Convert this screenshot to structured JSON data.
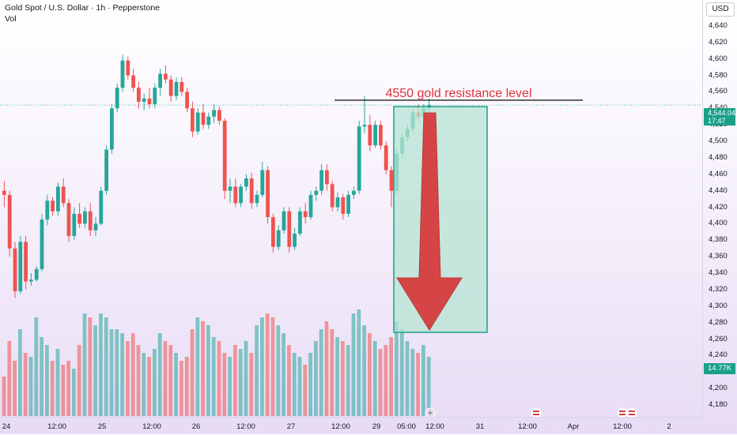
{
  "header": {
    "title": "Gold Spot / U.S. Dollar · 1h · Pepperstone",
    "volume_label": "Vol"
  },
  "price_scale": {
    "currency": "USD"
  },
  "price_badge": {
    "price": "4,544.04",
    "countdown": "17:47"
  },
  "volume_badge": "14.77K",
  "annotation": {
    "text": "4550 gold resistance level",
    "level": 4550,
    "color": "#e0323c"
  },
  "colors": {
    "up": "#26a69a",
    "down": "#ef5350",
    "box_fill": "#b5e3d3",
    "box_border": "#1aa089",
    "arrow": "#d64545",
    "resistance_line": "#333333"
  },
  "chart_data": {
    "type": "candlestick",
    "ylim": [
      4180,
      4660
    ],
    "y_ticks": [
      4180,
      4200,
      4220,
      4240,
      4260,
      4280,
      4300,
      4320,
      4340,
      4360,
      4380,
      4400,
      4420,
      4440,
      4460,
      4480,
      4500,
      4520,
      4540,
      4560,
      4580,
      4600,
      4620,
      4640,
      4660
    ],
    "x_labels": [
      "24",
      "12:00",
      "25",
      "12:00",
      "26",
      "12:00",
      "27",
      "12:00",
      "29",
      "05:00",
      "12:00",
      "31",
      "12:00",
      "Apr",
      "12:00",
      "2"
    ],
    "ohlc": [
      [
        4440,
        4452,
        4420,
        4435
      ],
      [
        4435,
        4440,
        4360,
        4370
      ],
      [
        4370,
        4378,
        4310,
        4318
      ],
      [
        4318,
        4385,
        4315,
        4378
      ],
      [
        4378,
        4385,
        4320,
        4330
      ],
      [
        4330,
        4340,
        4325,
        4332
      ],
      [
        4332,
        4348,
        4330,
        4345
      ],
      [
        4345,
        4412,
        4342,
        4405
      ],
      [
        4405,
        4435,
        4398,
        4428
      ],
      [
        4428,
        4432,
        4410,
        4415
      ],
      [
        4415,
        4450,
        4410,
        4445
      ],
      [
        4445,
        4455,
        4420,
        4425
      ],
      [
        4425,
        4430,
        4378,
        4385
      ],
      [
        4385,
        4420,
        4380,
        4412
      ],
      [
        4412,
        4425,
        4395,
        4400
      ],
      [
        4400,
        4420,
        4395,
        4415
      ],
      [
        4415,
        4425,
        4385,
        4392
      ],
      [
        4392,
        4408,
        4385,
        4400
      ],
      [
        4400,
        4445,
        4398,
        4440
      ],
      [
        4440,
        4495,
        4435,
        4490
      ],
      [
        4490,
        4545,
        4485,
        4540
      ],
      [
        4540,
        4570,
        4535,
        4565
      ],
      [
        4565,
        4605,
        4560,
        4598
      ],
      [
        4598,
        4603,
        4575,
        4580
      ],
      [
        4580,
        4588,
        4560,
        4565
      ],
      [
        4565,
        4572,
        4540,
        4548
      ],
      [
        4548,
        4558,
        4538,
        4552
      ],
      [
        4552,
        4565,
        4540,
        4545
      ],
      [
        4545,
        4570,
        4540,
        4565
      ],
      [
        4565,
        4588,
        4555,
        4582
      ],
      [
        4582,
        4592,
        4570,
        4575
      ],
      [
        4575,
        4580,
        4548,
        4555
      ],
      [
        4555,
        4578,
        4550,
        4572
      ],
      [
        4572,
        4578,
        4555,
        4560
      ],
      [
        4560,
        4565,
        4535,
        4540
      ],
      [
        4540,
        4548,
        4505,
        4512
      ],
      [
        4512,
        4540,
        4508,
        4535
      ],
      [
        4535,
        4545,
        4515,
        4520
      ],
      [
        4520,
        4535,
        4515,
        4530
      ],
      [
        4530,
        4545,
        4522,
        4538
      ],
      [
        4538,
        4542,
        4520,
        4525
      ],
      [
        4525,
        4528,
        4430,
        4440
      ],
      [
        4440,
        4455,
        4425,
        4445
      ],
      [
        4445,
        4455,
        4420,
        4425
      ],
      [
        4425,
        4448,
        4420,
        4445
      ],
      [
        4445,
        4460,
        4440,
        4455
      ],
      [
        4455,
        4462,
        4418,
        4425
      ],
      [
        4425,
        4440,
        4420,
        4435
      ],
      [
        4435,
        4475,
        4432,
        4465
      ],
      [
        4465,
        4470,
        4400,
        4408
      ],
      [
        4408,
        4412,
        4365,
        4372
      ],
      [
        4372,
        4398,
        4368,
        4392
      ],
      [
        4392,
        4420,
        4388,
        4415
      ],
      [
        4415,
        4420,
        4365,
        4372
      ],
      [
        4372,
        4395,
        4368,
        4388
      ],
      [
        4388,
        4420,
        4385,
        4415
      ],
      [
        4415,
        4425,
        4400,
        4408
      ],
      [
        4408,
        4440,
        4405,
        4435
      ],
      [
        4435,
        4445,
        4428,
        4440
      ],
      [
        4440,
        4472,
        4435,
        4465
      ],
      [
        4465,
        4472,
        4440,
        4448
      ],
      [
        4448,
        4452,
        4415,
        4420
      ],
      [
        4420,
        4438,
        4415,
        4432
      ],
      [
        4432,
        4436,
        4405,
        4412
      ],
      [
        4412,
        4440,
        4408,
        4435
      ],
      [
        4435,
        4445,
        4430,
        4440
      ],
      [
        4440,
        4525,
        4436,
        4518
      ],
      [
        4518,
        4555,
        4510,
        4520
      ],
      [
        4520,
        4532,
        4488,
        4495
      ],
      [
        4495,
        4525,
        4492,
        4520
      ],
      [
        4520,
        4525,
        4490,
        4495
      ],
      [
        4495,
        4500,
        4460,
        4465
      ],
      [
        4465,
        4470,
        4420,
        4440
      ],
      [
        4440,
        4490,
        4436,
        4485
      ],
      [
        4485,
        4510,
        4480,
        4505
      ],
      [
        4505,
        4520,
        4500,
        4515
      ],
      [
        4515,
        4540,
        4510,
        4535
      ],
      [
        4535,
        4545,
        4525,
        4530
      ],
      [
        4530,
        4545,
        4525,
        4540
      ],
      [
        4540,
        4552,
        4530,
        4544
      ]
    ],
    "volume": [
      5.0,
      9.5,
      7.0,
      11.0,
      8.0,
      7.5,
      12.5,
      10.0,
      9.0,
      7.0,
      8.5,
      6.5,
      7.0,
      6.0,
      9.0,
      13.0,
      12.5,
      11.5,
      13.0,
      12.5,
      11.0,
      11.0,
      10.5,
      9.5,
      10.5,
      9.0,
      8.0,
      7.5,
      8.5,
      10.5,
      9.5,
      9.0,
      8.0,
      7.0,
      7.5,
      11.0,
      12.5,
      12.0,
      11.5,
      10.0,
      9.5,
      8.0,
      7.5,
      9.0,
      8.5,
      9.5,
      8.0,
      11.5,
      12.5,
      13.0,
      12.5,
      11.5,
      10.5,
      9.0,
      8.0,
      7.5,
      6.5,
      8.0,
      9.5,
      11.0,
      12.0,
      11.0,
      10.0,
      9.5,
      9.0,
      13.0,
      13.5,
      11.5,
      10.5,
      9.5,
      8.5,
      9.0,
      10.0,
      12.0,
      11.0,
      9.5,
      8.5,
      8.0,
      9.0,
      7.5
    ]
  }
}
